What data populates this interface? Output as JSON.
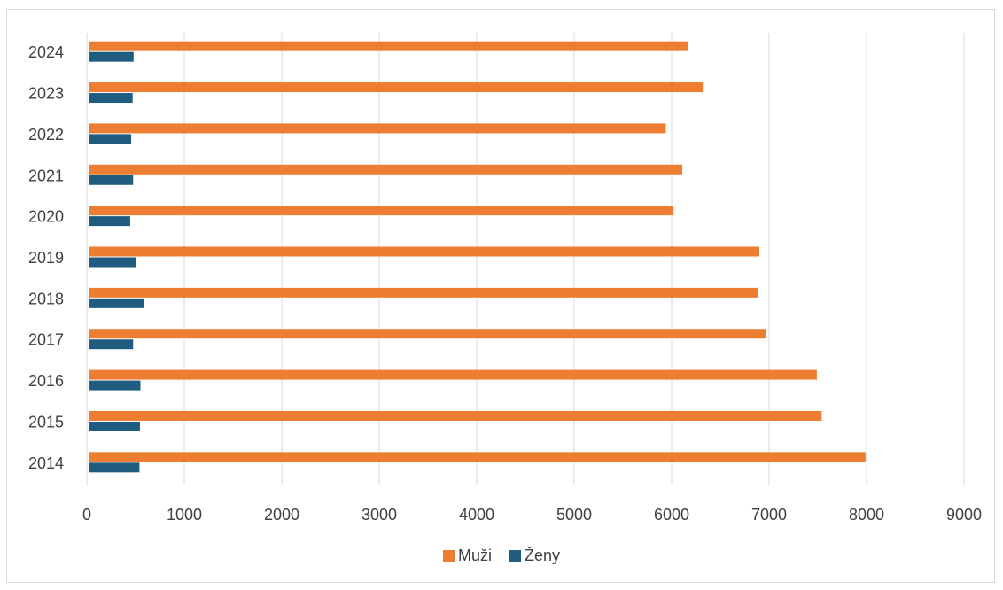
{
  "chart_data": {
    "type": "bar",
    "orientation": "horizontal",
    "title": "",
    "xlabel": "",
    "ylabel": "",
    "categories": [
      "2014",
      "2015",
      "2016",
      "2017",
      "2018",
      "2019",
      "2020",
      "2021",
      "2022",
      "2023",
      "2024"
    ],
    "series": [
      {
        "name": "Muži",
        "color": "#ED7D31",
        "values": [
          7990,
          7540,
          7490,
          6970,
          6890,
          6900,
          6020,
          6110,
          5940,
          6320,
          6170
        ]
      },
      {
        "name": "Ženy",
        "color": "#1F5C80",
        "values": [
          540,
          545,
          550,
          475,
          590,
          500,
          445,
          475,
          455,
          470,
          480
        ]
      }
    ],
    "xlim": [
      0,
      9000
    ],
    "xticks": [
      "0",
      "1000",
      "2000",
      "3000",
      "4000",
      "5000",
      "6000",
      "7000",
      "8000",
      "9000"
    ],
    "grid": true,
    "legend_position": "bottom",
    "gridline_color": "#d9d9d9"
  }
}
